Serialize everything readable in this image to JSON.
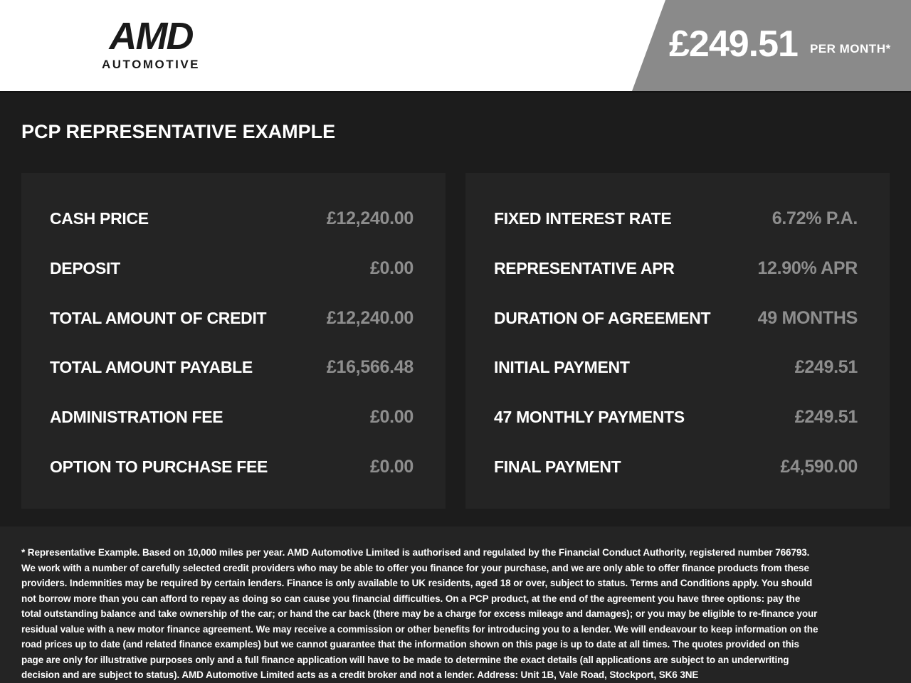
{
  "header": {
    "logo": {
      "brand": "AMD",
      "sub": "AUTOMOTIVE"
    },
    "price_banner": {
      "amount": "£249.51",
      "period": "PER MONTH*"
    }
  },
  "title": "PCP REPRESENTATIVE EXAMPLE",
  "panels": {
    "left": {
      "rows": [
        {
          "label": "CASH PRICE",
          "value": "£12,240.00"
        },
        {
          "label": "DEPOSIT",
          "value": "£0.00"
        },
        {
          "label": "TOTAL AMOUNT OF CREDIT",
          "value": "£12,240.00"
        },
        {
          "label": "TOTAL AMOUNT PAYABLE",
          "value": "£16,566.48"
        },
        {
          "label": "ADMINISTRATION FEE",
          "value": "£0.00"
        },
        {
          "label": "OPTION TO PURCHASE FEE",
          "value": "£0.00"
        }
      ]
    },
    "right": {
      "rows": [
        {
          "label": "FIXED INTEREST RATE",
          "value": "6.72% P.A."
        },
        {
          "label": "REPRESENTATIVE APR",
          "value": "12.90% APR"
        },
        {
          "label": "DURATION OF AGREEMENT",
          "value": "49 MONTHS"
        },
        {
          "label": "INITIAL PAYMENT",
          "value": "£249.51"
        },
        {
          "label": "47 MONTHLY PAYMENTS",
          "value": "£249.51"
        },
        {
          "label": "FINAL PAYMENT",
          "value": "£4,590.00"
        }
      ]
    }
  },
  "footer": {
    "disclaimer": "* Representative Example. Based on 10,000 miles per year. AMD Automotive Limited is authorised and regulated by the Financial Conduct Authority, registered number 766793. We work with a number of carefully selected credit providers who may be able to offer you finance for your purchase, and we are only able to offer finance products from these providers. Indemnities may be required by certain lenders. Finance is only available to UK residents, aged 18 or over, subject to status. Terms and Conditions apply. You should not borrow more than you can afford to repay as doing so can cause you financial difficulties. On a PCP product, at the end of the agreement you have three options: pay the total outstanding balance and take ownership of the car; or hand the car back (there may be a charge for excess mileage and damages); or you may be eligible to re-finance your residual value with a new motor finance agreement. We may receive a commission or other benefits for introducing you to a lender. We will endeavour to keep information on the road prices up to date (and related finance examples) but we cannot guarantee that the information shown on this page is up to date at all times. The quotes provided on this page are only for illustrative purposes only and a full finance application will have to be made to determine the exact details (all applications are subject to an underwriting decision and are subject to status). AMD Automotive Limited acts as a credit broker and not a lender. Address: Unit 1B, Vale Road, Stockport, SK6 3NE"
  },
  "colors": {
    "header_bg": "#ffffff",
    "banner_bg": "#8a8a8a",
    "page_bg": "#1c1c1c",
    "panel_bg": "#242424",
    "label_text": "#ffffff",
    "value_text": "#8e8e8e",
    "logo_text": "#1a1a1a"
  }
}
